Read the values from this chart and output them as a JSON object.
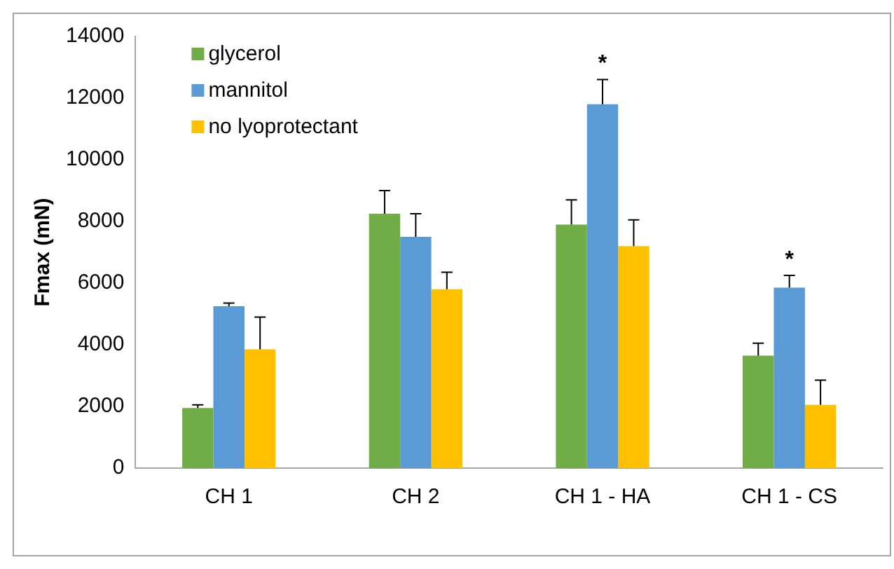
{
  "chart_data": {
    "type": "bar",
    "ylabel": "Fmax (mN)",
    "categories": [
      "CH 1",
      "CH 2",
      "CH 1 - HA",
      "CH 1 - CS"
    ],
    "series": [
      {
        "name": "glycerol",
        "color": "#70ad47",
        "values": [
          1950,
          8250,
          7900,
          3650
        ],
        "errors": [
          [
            1950,
            2050
          ],
          [
            8250,
            9000
          ],
          [
            7900,
            8700
          ],
          [
            3650,
            4050
          ]
        ]
      },
      {
        "name": "mannitol",
        "color": "#5b9bd5",
        "values": [
          5250,
          7500,
          11800,
          5850
        ],
        "errors": [
          [
            5250,
            5350
          ],
          [
            7500,
            8250
          ],
          [
            11800,
            12600
          ],
          [
            5850,
            6250
          ]
        ]
      },
      {
        "name": "no lyoprotectant",
        "color": "#ffc000",
        "values": [
          3850,
          5800,
          7200,
          2050
        ],
        "errors": [
          [
            3850,
            4900
          ],
          [
            5800,
            6350
          ],
          [
            7200,
            8050
          ],
          [
            2050,
            2850
          ]
        ]
      }
    ],
    "annotations": [
      {
        "text": "*",
        "x": "CH 1 - HA",
        "y": 12600
      },
      {
        "text": "*",
        "x": "CH 1 - CS",
        "y": 6250
      }
    ],
    "ylim": [
      0,
      14000
    ],
    "yticks": [
      0,
      2000,
      4000,
      6000,
      8000,
      10000,
      12000,
      14000
    ],
    "grid": false,
    "legend": "top left"
  }
}
